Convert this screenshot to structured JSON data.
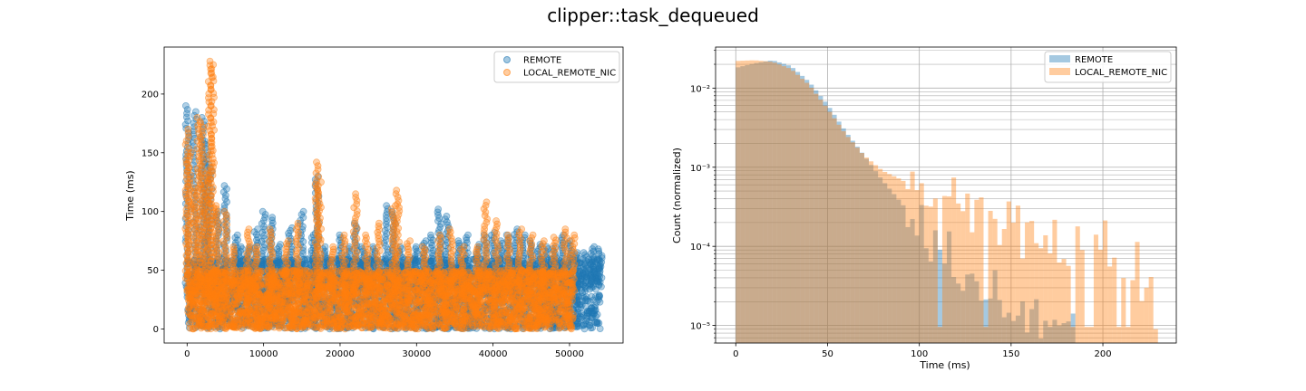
{
  "title": "clipper::task_dequeued",
  "colors": {
    "remote": "#1f77b4",
    "local": "#ff7f0e"
  },
  "chart_data": [
    {
      "type": "scatter",
      "title": "",
      "xlabel": "",
      "ylabel": "Time (ms)",
      "xlim": [
        -3000,
        57000
      ],
      "ylim": [
        -12,
        240
      ],
      "x_ticks": [
        0,
        10000,
        20000,
        30000,
        40000,
        50000
      ],
      "y_ticks": [
        0,
        50,
        100,
        150,
        200
      ],
      "x_tick_labels": [
        "0",
        "10000",
        "20000",
        "30000",
        "40000",
        "50000"
      ],
      "y_tick_labels": [
        "0",
        "50",
        "100",
        "150",
        "200"
      ],
      "legend": {
        "position": "top-right",
        "entries": [
          "REMOTE",
          "LOCAL_REMOTE_NIC"
        ]
      },
      "grid": false,
      "series": [
        {
          "name": "REMOTE",
          "color": "#1f77b4",
          "x_range": [
            0,
            54000
          ],
          "typical_range": [
            0,
            60
          ],
          "spikes": [
            [
              0,
              190
            ],
            [
              1000,
              185
            ],
            [
              2000,
              180
            ],
            [
              2500,
              160
            ],
            [
              3000,
              140
            ],
            [
              4000,
              100
            ],
            [
              5000,
              122
            ],
            [
              6500,
              80
            ],
            [
              7000,
              70
            ],
            [
              8000,
              70
            ],
            [
              9000,
              85
            ],
            [
              10000,
              100
            ],
            [
              11000,
              95
            ],
            [
              12000,
              72
            ],
            [
              13500,
              86
            ],
            [
              15000,
              100
            ],
            [
              16500,
              80
            ],
            [
              17000,
              130
            ],
            [
              18000,
              70
            ],
            [
              20000,
              80
            ],
            [
              21000,
              70
            ],
            [
              22000,
              90
            ],
            [
              23000,
              70
            ],
            [
              24500,
              70
            ],
            [
              26000,
              105
            ],
            [
              27000,
              100
            ],
            [
              28000,
              70
            ],
            [
              30000,
              70
            ],
            [
              31000,
              75
            ],
            [
              32000,
              80
            ],
            [
              33000,
              102
            ],
            [
              34000,
              96
            ],
            [
              35500,
              75
            ],
            [
              36500,
              80
            ],
            [
              38000,
              72
            ],
            [
              39000,
              80
            ],
            [
              40000,
              82
            ],
            [
              41000,
              75
            ],
            [
              42000,
              80
            ],
            [
              43000,
              85
            ],
            [
              44000,
              80
            ],
            [
              45000,
              75
            ],
            [
              46000,
              72
            ],
            [
              47000,
              70
            ],
            [
              48000,
              70
            ],
            [
              49000,
              80
            ],
            [
              50000,
              75
            ],
            [
              51000,
              65
            ],
            [
              52000,
              65
            ],
            [
              53000,
              70
            ],
            [
              54000,
              68
            ]
          ]
        },
        {
          "name": "LOCAL_REMOTE_NIC",
          "color": "#ff7f0e",
          "x_range": [
            0,
            50500
          ],
          "typical_range": [
            0,
            50
          ],
          "spikes": [
            [
              0,
              170
            ],
            [
              300,
              150
            ],
            [
              1000,
              120
            ],
            [
              1500,
              180
            ],
            [
              2000,
              175
            ],
            [
              2500,
              135
            ],
            [
              3000,
              228
            ],
            [
              3300,
              225
            ],
            [
              4000,
              105
            ],
            [
              5000,
              100
            ],
            [
              6000,
              70
            ],
            [
              8000,
              85
            ],
            [
              9000,
              70
            ],
            [
              11000,
              85
            ],
            [
              13000,
              75
            ],
            [
              14500,
              90
            ],
            [
              17000,
              142
            ],
            [
              17300,
              125
            ],
            [
              19000,
              70
            ],
            [
              20500,
              80
            ],
            [
              22000,
              115
            ],
            [
              23500,
              80
            ],
            [
              25000,
              90
            ],
            [
              27000,
              105
            ],
            [
              27500,
              118
            ],
            [
              29000,
              75
            ],
            [
              31000,
              70
            ],
            [
              33000,
              80
            ],
            [
              34500,
              85
            ],
            [
              36000,
              70
            ],
            [
              38000,
              70
            ],
            [
              39000,
              108
            ],
            [
              40500,
              92
            ],
            [
              42000,
              80
            ],
            [
              43500,
              85
            ],
            [
              45000,
              80
            ],
            [
              46500,
              75
            ],
            [
              48000,
              78
            ],
            [
              49500,
              85
            ],
            [
              50500,
              80
            ]
          ]
        }
      ]
    },
    {
      "type": "bar",
      "subtype": "histogram",
      "title": "",
      "xlabel": "Time (ms)",
      "ylabel": "Count (normalized)",
      "xlim": [
        -11,
        240
      ],
      "ylim": [
        6e-06,
        0.033
      ],
      "yscale": "log",
      "bin_width": 2.5,
      "x_ticks": [
        0,
        50,
        100,
        150,
        200
      ],
      "x_tick_labels": [
        "0",
        "50",
        "100",
        "150",
        "200"
      ],
      "y_ticks": [
        1e-05,
        0.0001,
        0.001,
        0.01
      ],
      "y_tick_labels": [
        "10⁻⁵",
        "10⁻⁴",
        "10⁻³",
        "10⁻²"
      ],
      "legend": {
        "position": "top-right",
        "entries": [
          "REMOTE",
          "LOCAL_REMOTE_NIC"
        ]
      },
      "grid": true,
      "series": [
        {
          "name": "REMOTE",
          "color": "#1f77b4",
          "x_max": 190,
          "curve": [
            [
              0,
              0.018
            ],
            [
              10,
              0.0205
            ],
            [
              20,
              0.0225
            ],
            [
              30,
              0.019
            ],
            [
              40,
              0.012
            ],
            [
              50,
              0.0062
            ],
            [
              60,
              0.0028
            ],
            [
              70,
              0.0014
            ],
            [
              80,
              0.00068
            ],
            [
              90,
              0.00036
            ],
            [
              100,
              0.00018
            ],
            [
              110,
              0.0001
            ],
            [
              120,
              6.5e-05
            ],
            [
              130,
              4e-05
            ],
            [
              140,
              2.8e-05
            ],
            [
              150,
              2e-05
            ],
            [
              160,
              1.4e-05
            ],
            [
              170,
              1.2e-05
            ],
            [
              180,
              1.1e-05
            ],
            [
              190,
              1e-05
            ]
          ]
        },
        {
          "name": "LOCAL_REMOTE_NIC",
          "color": "#ff7f0e",
          "x_max": 228,
          "curve": [
            [
              0,
              0.022
            ],
            [
              10,
              0.0225
            ],
            [
              20,
              0.0215
            ],
            [
              30,
              0.0175
            ],
            [
              40,
              0.011
            ],
            [
              50,
              0.0055
            ],
            [
              60,
              0.0026
            ],
            [
              70,
              0.0014
            ],
            [
              80,
              0.0009
            ],
            [
              90,
              0.0007
            ],
            [
              100,
              0.0005
            ],
            [
              110,
              0.00042
            ],
            [
              120,
              0.00035
            ],
            [
              130,
              0.00025
            ],
            [
              140,
              0.00022
            ],
            [
              150,
              0.00018
            ],
            [
              160,
              0.00014
            ],
            [
              170,
              0.00013
            ],
            [
              180,
              0.00012
            ],
            [
              190,
              0.00011
            ],
            [
              200,
              0.0001
            ],
            [
              210,
              8e-05
            ],
            [
              220,
              5e-05
            ],
            [
              228,
              2e-05
            ]
          ]
        }
      ]
    }
  ]
}
